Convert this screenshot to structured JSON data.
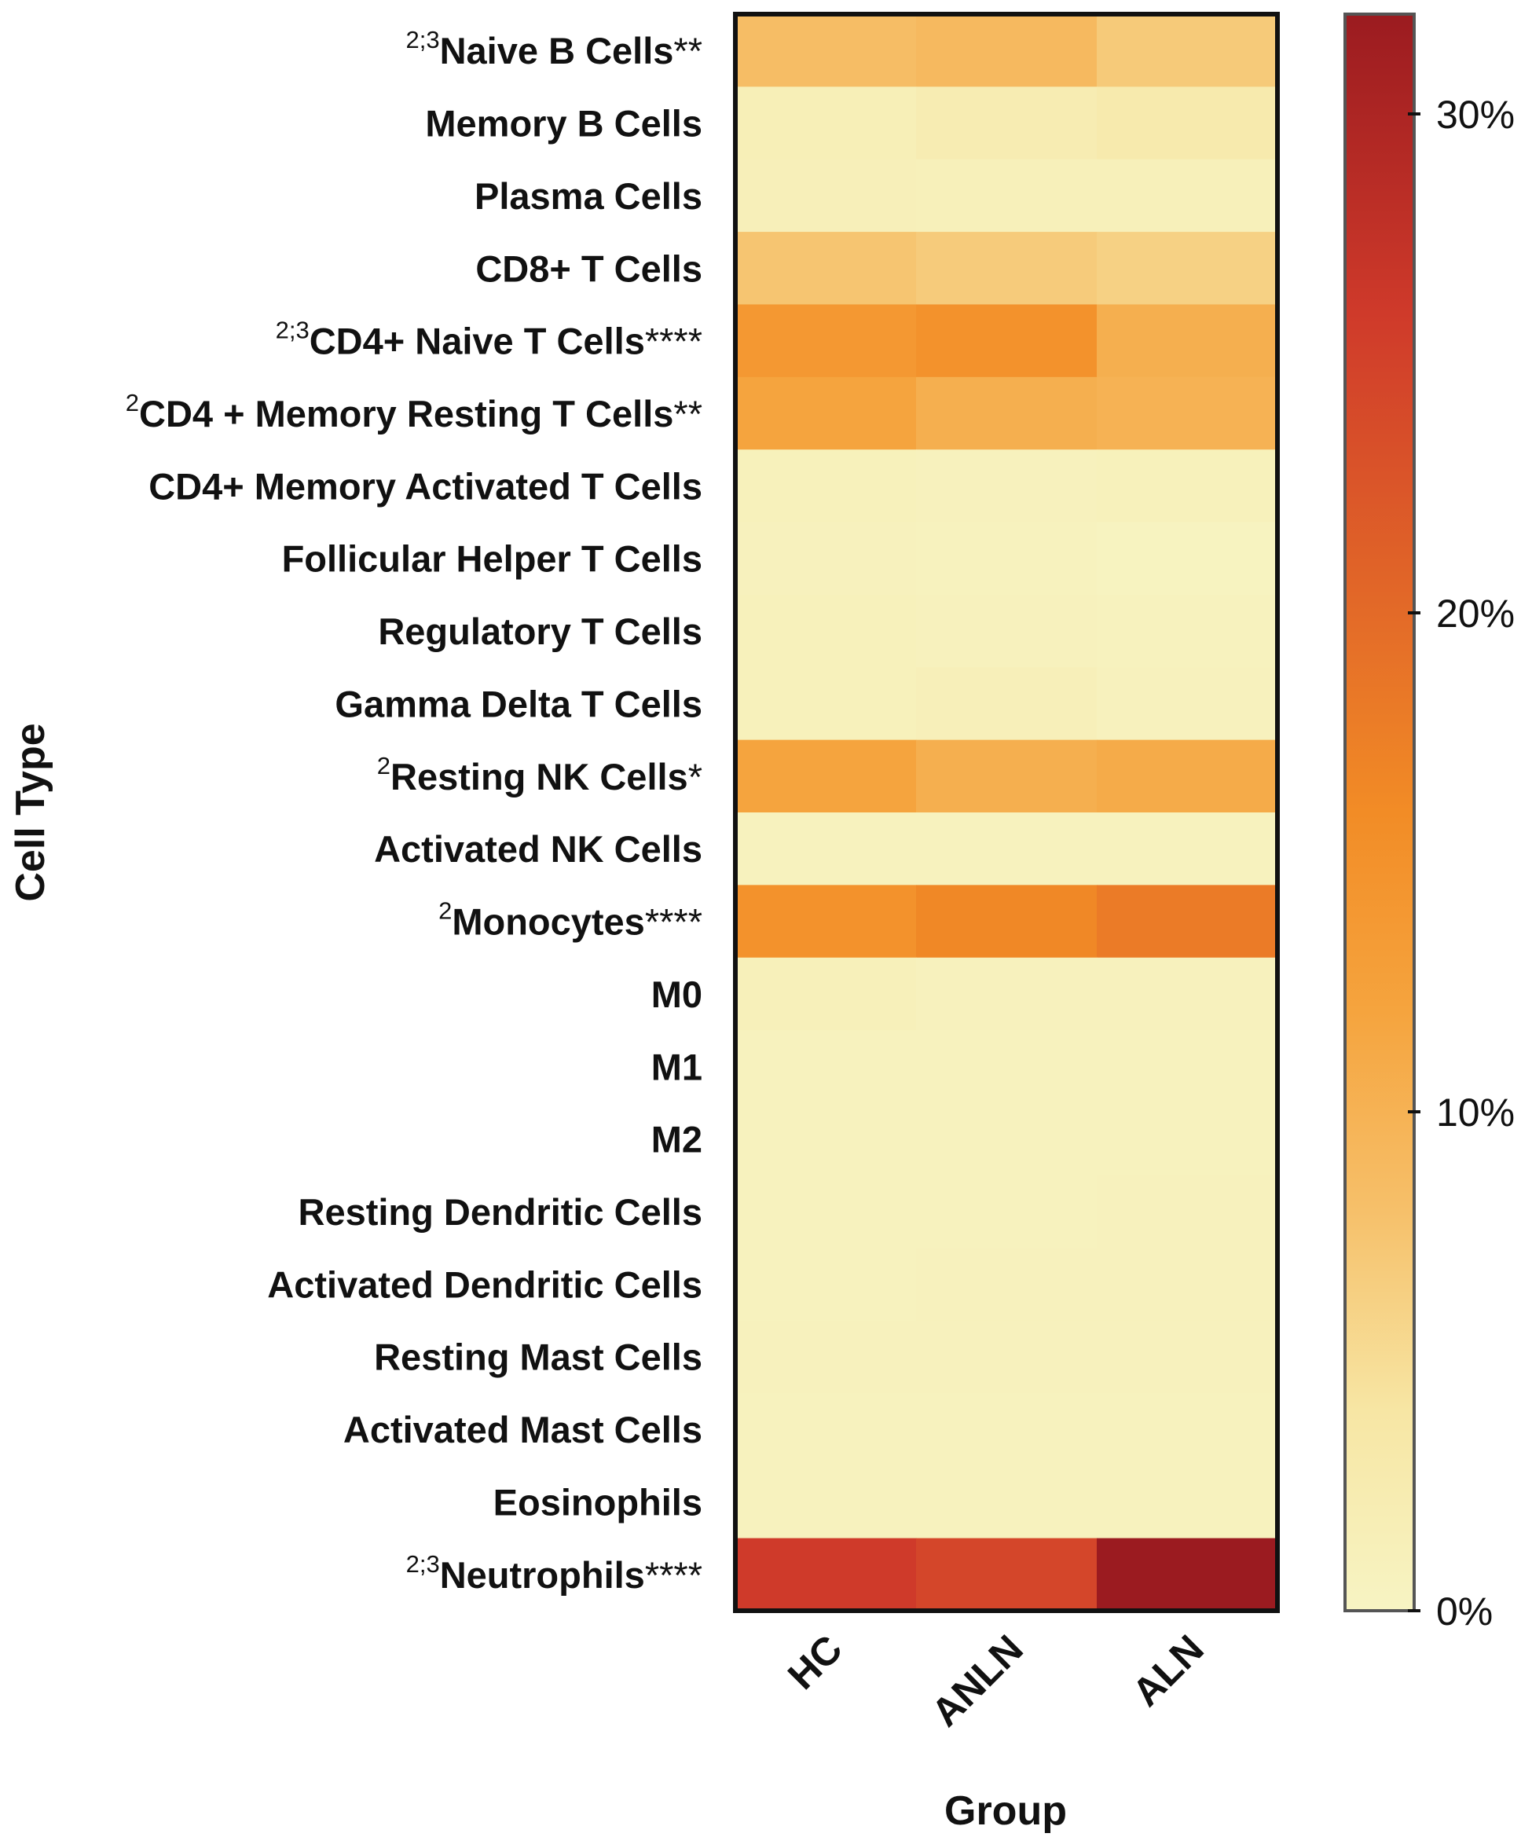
{
  "chart_data": {
    "type": "heatmap",
    "xlabel": "Group",
    "ylabel": "Cell Type",
    "columns": [
      "HC",
      "ANLN",
      "ALN"
    ],
    "rows": [
      {
        "sup": "2;3",
        "label": "Naive B Cells",
        "stars": "**",
        "values": [
          8.5,
          9.0,
          7.0
        ]
      },
      {
        "sup": "",
        "label": "Memory B Cells",
        "stars": "",
        "values": [
          1.5,
          2.2,
          2.8
        ]
      },
      {
        "sup": "",
        "label": "Plasma Cells",
        "stars": "",
        "values": [
          1.3,
          1.2,
          1.2
        ]
      },
      {
        "sup": "",
        "label": "CD8+ T Cells",
        "stars": "",
        "values": [
          7.5,
          6.8,
          6.2
        ]
      },
      {
        "sup": "2;3",
        "label": "CD4+ Naive T Cells",
        "stars": "****",
        "values": [
          14.0,
          15.0,
          10.5
        ]
      },
      {
        "sup": "2",
        "label": "CD4 + Memory Resting T Cells",
        "stars": "**",
        "values": [
          12.0,
          10.5,
          10.0
        ]
      },
      {
        "sup": "",
        "label": "CD4+ Memory Activated T Cells",
        "stars": "",
        "values": [
          1.0,
          0.8,
          1.0
        ]
      },
      {
        "sup": "",
        "label": "Follicular Helper T Cells",
        "stars": "",
        "values": [
          0.8,
          0.6,
          0.4
        ]
      },
      {
        "sup": "",
        "label": "Regulatory T Cells",
        "stars": "",
        "values": [
          1.0,
          0.8,
          0.6
        ]
      },
      {
        "sup": "",
        "label": "Gamma Delta T Cells",
        "stars": "",
        "values": [
          1.0,
          1.3,
          0.8
        ]
      },
      {
        "sup": "2",
        "label": "Resting NK Cells",
        "stars": "*",
        "values": [
          12.0,
          10.5,
          11.0
        ]
      },
      {
        "sup": "",
        "label": "Activated NK Cells",
        "stars": "",
        "values": [
          0.6,
          0.6,
          0.6
        ]
      },
      {
        "sup": "2",
        "label": "Monocytes",
        "stars": "****",
        "values": [
          15.0,
          16.5,
          18.0
        ]
      },
      {
        "sup": "",
        "label": "M0",
        "stars": "",
        "values": [
          1.2,
          0.8,
          0.8
        ]
      },
      {
        "sup": "",
        "label": "M1",
        "stars": "",
        "values": [
          0.6,
          0.6,
          0.6
        ]
      },
      {
        "sup": "",
        "label": "M2",
        "stars": "",
        "values": [
          0.6,
          0.6,
          0.6
        ]
      },
      {
        "sup": "",
        "label": "Resting Dendritic Cells",
        "stars": "",
        "values": [
          0.6,
          0.6,
          0.8
        ]
      },
      {
        "sup": "",
        "label": "Activated Dendritic Cells",
        "stars": "",
        "values": [
          0.6,
          0.8,
          0.8
        ]
      },
      {
        "sup": "",
        "label": "Resting Mast Cells",
        "stars": "",
        "values": [
          0.8,
          0.8,
          0.8
        ]
      },
      {
        "sup": "",
        "label": "Activated Mast Cells",
        "stars": "",
        "values": [
          0.6,
          0.6,
          0.6
        ]
      },
      {
        "sup": "",
        "label": "Eosinophils",
        "stars": "",
        "values": [
          0.6,
          0.6,
          0.6
        ]
      },
      {
        "sup": "2;3",
        "label": "Neutrophils",
        "stars": "****",
        "values": [
          26.0,
          24.5,
          32.0
        ]
      }
    ],
    "colorbar": {
      "min": 0,
      "max": 32,
      "ticks": [
        0,
        10,
        20,
        30
      ],
      "tick_labels": [
        "0%",
        "10%",
        "20%",
        "30%"
      ],
      "stops": [
        {
          "value": 0,
          "color": "#f7f4c3"
        },
        {
          "value": 4,
          "color": "#f7e6a4"
        },
        {
          "value": 8,
          "color": "#f6c06a"
        },
        {
          "value": 12,
          "color": "#f5a43e"
        },
        {
          "value": 16,
          "color": "#f28c26"
        },
        {
          "value": 20,
          "color": "#e36a28"
        },
        {
          "value": 26,
          "color": "#cf3a2a"
        },
        {
          "value": 32,
          "color": "#9b1b20"
        }
      ]
    }
  }
}
